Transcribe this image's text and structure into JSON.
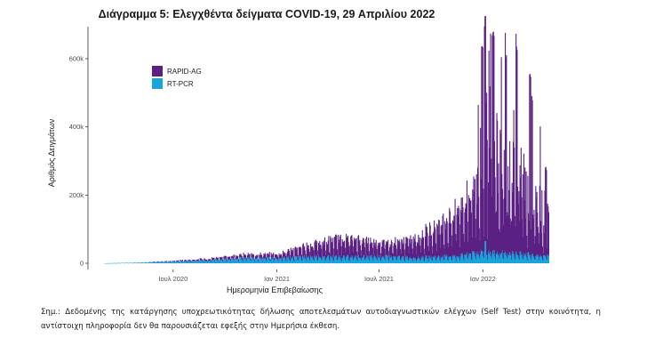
{
  "chart_data": {
    "type": "area",
    "title": "Διάγραμμα 5: Ελεγχθέντα δείγματα COVID-19, 29 Απριλίου 2022",
    "xlabel": "Ημερομηνία Επιβεβαίωσης",
    "ylabel": "Αριθμός Δειγμάτων",
    "x_tick_labels": [
      "Ιουλ 2020",
      "Ιαν 2021",
      "Ιουλ 2021",
      "Ιαν 2022"
    ],
    "y_tick_labels": [
      "0",
      "200k",
      "400k",
      "600k"
    ],
    "ylim": [
      0,
      700000
    ],
    "stacked": true,
    "grid": false,
    "legend_position": "top-left",
    "series": [
      {
        "name": "RAPID-AG",
        "color": "#5b2083",
        "values": [
          {
            "x": "2020-03-01",
            "y": 0
          },
          {
            "x": "2020-05-01",
            "y": 0
          },
          {
            "x": "2020-07-01",
            "y": 2000
          },
          {
            "x": "2020-09-01",
            "y": 5000
          },
          {
            "x": "2020-11-01",
            "y": 10000
          },
          {
            "x": "2021-01-01",
            "y": 12000
          },
          {
            "x": "2021-03-01",
            "y": 35000
          },
          {
            "x": "2021-05-01",
            "y": 55000
          },
          {
            "x": "2021-06-15",
            "y": 45000
          },
          {
            "x": "2021-07-15",
            "y": 40000
          },
          {
            "x": "2021-09-01",
            "y": 55000
          },
          {
            "x": "2021-10-15",
            "y": 95000
          },
          {
            "x": "2021-11-15",
            "y": 130000
          },
          {
            "x": "2021-12-15",
            "y": 190000
          },
          {
            "x": "2022-01-05",
            "y": 450000
          },
          {
            "x": "2022-01-20",
            "y": 320000
          },
          {
            "x": "2022-02-15",
            "y": 240000
          },
          {
            "x": "2022-03-15",
            "y": 220000
          },
          {
            "x": "2022-04-10",
            "y": 160000
          },
          {
            "x": "2022-04-27",
            "y": 110000
          }
        ],
        "peak_values": [
          {
            "x": "2021-12-30",
            "y": 600000
          },
          {
            "x": "2022-01-04",
            "y": 660000
          },
          {
            "x": "2022-01-18",
            "y": 640000
          },
          {
            "x": "2022-02-10",
            "y": 580000
          },
          {
            "x": "2022-03-01",
            "y": 600000
          },
          {
            "x": "2022-03-25",
            "y": 530000
          },
          {
            "x": "2022-04-22",
            "y": 260000
          }
        ]
      },
      {
        "name": "RT-PCR",
        "color": "#1aa4dc",
        "values": [
          {
            "x": "2020-03-01",
            "y": 0
          },
          {
            "x": "2020-05-01",
            "y": 2000
          },
          {
            "x": "2020-07-01",
            "y": 5000
          },
          {
            "x": "2020-09-01",
            "y": 9000
          },
          {
            "x": "2020-11-01",
            "y": 15000
          },
          {
            "x": "2021-01-01",
            "y": 15000
          },
          {
            "x": "2021-03-01",
            "y": 20000
          },
          {
            "x": "2021-05-01",
            "y": 20000
          },
          {
            "x": "2021-07-15",
            "y": 20000
          },
          {
            "x": "2021-09-01",
            "y": 17000
          },
          {
            "x": "2021-11-15",
            "y": 22000
          },
          {
            "x": "2022-01-05",
            "y": 35000
          },
          {
            "x": "2022-02-15",
            "y": 30000
          },
          {
            "x": "2022-03-15",
            "y": 28000
          },
          {
            "x": "2022-04-27",
            "y": 22000
          }
        ],
        "peak_values": [
          {
            "x": "2022-01-05",
            "y": 65000
          }
        ]
      }
    ]
  },
  "note": {
    "text": "Σημ.: Δεδομένης της κατάργησης υποχρεωτικότητας δήλωσης αποτελεσμάτων αυτοδιαγνωστικών ελέγχων (Self Test) στην κοινότητα, η αντίστοιχη πληροφορία δεν θα παρουσιάζεται εφεξής στην Ημερήσια έκθεση."
  }
}
